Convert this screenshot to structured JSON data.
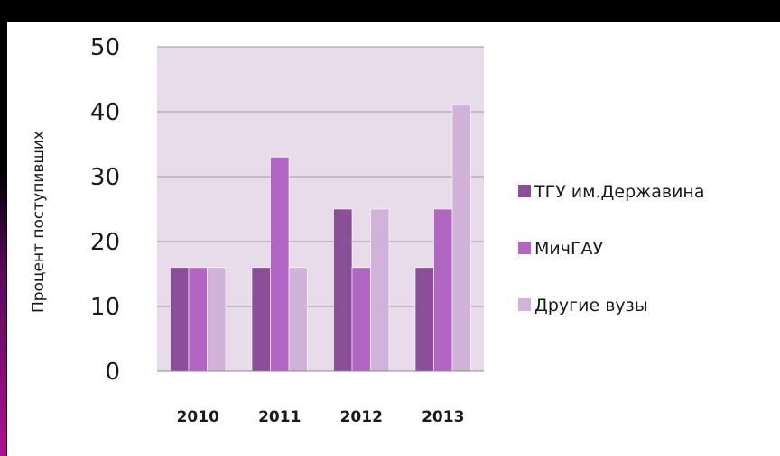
{
  "chart_data": {
    "type": "bar",
    "title": "",
    "xlabel": "",
    "ylabel": "Процент поступивших",
    "categories": [
      "2010",
      "2011",
      "2012",
      "2013"
    ],
    "series": [
      {
        "name": "ТГУ им.Державина",
        "color": "#8b4f9a",
        "values": [
          16,
          16,
          25,
          16
        ]
      },
      {
        "name": "МичГАУ",
        "color": "#b266c3",
        "values": [
          16,
          33,
          16,
          25
        ]
      },
      {
        "name": "Другие вузы",
        "color": "#d1b3da",
        "values": [
          16,
          16,
          25,
          41
        ]
      }
    ],
    "ylim": [
      0,
      50
    ],
    "yticks": [
      "0",
      "10",
      "20",
      "30",
      "40",
      "50"
    ],
    "grid": true,
    "legend_position": "right",
    "plot_background": "#e8dcea"
  }
}
